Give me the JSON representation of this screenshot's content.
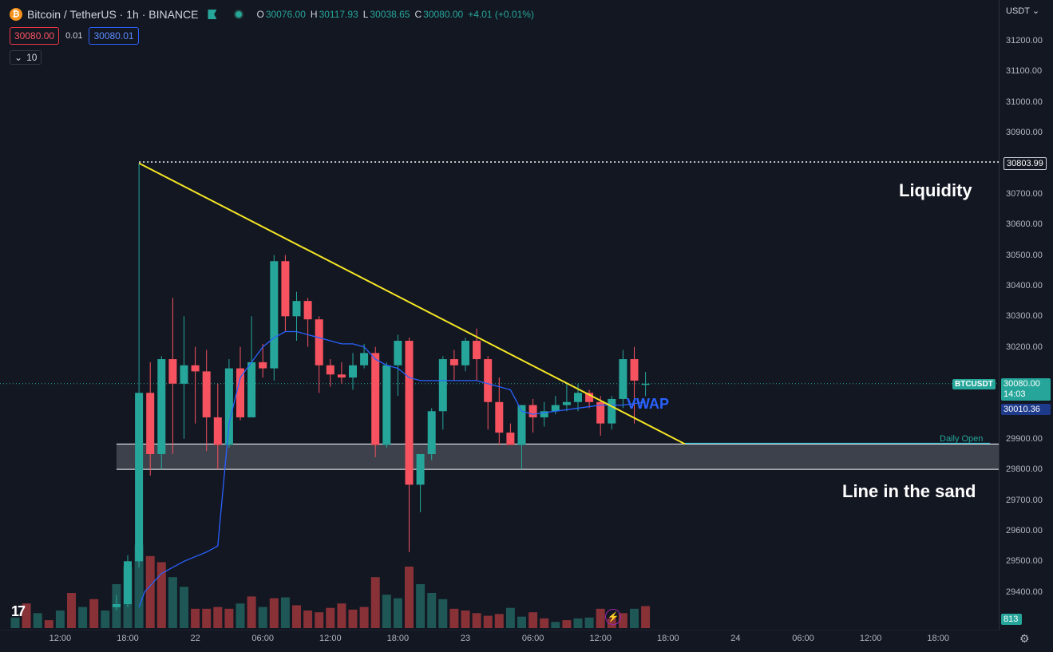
{
  "header": {
    "coin_glyph": "₿",
    "title": "Bitcoin / TetherUS · 1h · BINANCE",
    "ohlc": {
      "o_label": "O",
      "o": "30076.00",
      "h_label": "H",
      "h": "30117.93",
      "l_label": "L",
      "l": "30038.65",
      "c_label": "C",
      "c": "30080.00",
      "change": "+4.01 (+0.01%)"
    },
    "sell_price": "30080.00",
    "spread": "0.01",
    "buy_price": "30080.01",
    "collapse_count": "10",
    "collapse_icon": "chevron-down-icon"
  },
  "axis": {
    "currency": "USDT",
    "y_ticks": [
      "31200.00",
      "31100.00",
      "31000.00",
      "30900.00",
      "30700.00",
      "30600.00",
      "30500.00",
      "30400.00",
      "30300.00",
      "30200.00",
      "29900.00",
      "29800.00",
      "29700.00",
      "29600.00",
      "29500.00",
      "29400.00"
    ],
    "x_ticks": [
      {
        "label": "12:00",
        "t": 4
      },
      {
        "label": "18:00",
        "t": 10
      },
      {
        "label": "22",
        "t": 16
      },
      {
        "label": "06:00",
        "t": 22
      },
      {
        "label": "12:00",
        "t": 28
      },
      {
        "label": "18:00",
        "t": 34
      },
      {
        "label": "23",
        "t": 40
      },
      {
        "label": "06:00",
        "t": 46
      },
      {
        "label": "12:00",
        "t": 52
      },
      {
        "label": "18:00",
        "t": 58
      },
      {
        "label": "24",
        "t": 64
      },
      {
        "label": "06:00",
        "t": 70
      },
      {
        "label": "12:00",
        "t": 76
      },
      {
        "label": "18:00",
        "t": 82
      }
    ]
  },
  "tags": {
    "high": "30803.99",
    "symbol": "BTCUSDT",
    "last_price": "30080.00",
    "countdown": "14:03",
    "vwap_value": "30010.36",
    "volume": "813"
  },
  "annotations": {
    "liquidity": "Liquidity",
    "line_in_sand": "Line in the sand",
    "vwap": "VWAP",
    "daily_open": "Daily Open",
    "logo": "17"
  },
  "colors": {
    "up": "#26a69a",
    "down": "#f7525f",
    "trendline": "#f5e625",
    "vwap": "#2962ff",
    "zone": "#434651",
    "daily_open": "#26c6da"
  },
  "chart_data": {
    "type": "candlestick",
    "interval": "1h",
    "symbol": "BTCUSDT",
    "y_range": [
      29340,
      31280
    ],
    "candles": [
      [
        9,
        29350,
        29390,
        29340,
        29360
      ],
      [
        10,
        29360,
        29520,
        29350,
        29500
      ],
      [
        11,
        29500,
        30800,
        29480,
        30050
      ],
      [
        12,
        30050,
        30150,
        29780,
        29850
      ],
      [
        13,
        29850,
        30170,
        29800,
        30160
      ],
      [
        14,
        30160,
        30360,
        29850,
        30080
      ],
      [
        15,
        30080,
        30300,
        29900,
        30140
      ],
      [
        16,
        30140,
        30200,
        29950,
        30120
      ],
      [
        17,
        30120,
        30190,
        29860,
        29970
      ],
      [
        18,
        29970,
        30080,
        29800,
        29880
      ],
      [
        19,
        29880,
        30160,
        29870,
        30130
      ],
      [
        20,
        30130,
        30200,
        29960,
        29970
      ],
      [
        21,
        29970,
        30300,
        29970,
        30150
      ],
      [
        22,
        30150,
        30210,
        30100,
        30130
      ],
      [
        23,
        30130,
        30500,
        30090,
        30480
      ],
      [
        24,
        30480,
        30500,
        30250,
        30300
      ],
      [
        25,
        30300,
        30380,
        30220,
        30350
      ],
      [
        26,
        30350,
        30360,
        30200,
        30290
      ],
      [
        27,
        30290,
        30300,
        30050,
        30140
      ],
      [
        28,
        30140,
        30160,
        30070,
        30110
      ],
      [
        29,
        30110,
        30150,
        30080,
        30100
      ],
      [
        30,
        30100,
        30180,
        30060,
        30140
      ],
      [
        31,
        30140,
        30210,
        30130,
        30180
      ],
      [
        32,
        30180,
        30200,
        29840,
        29880
      ],
      [
        33,
        29880,
        30150,
        29870,
        30140
      ],
      [
        34,
        30140,
        30240,
        30040,
        30220
      ],
      [
        35,
        30220,
        30230,
        29530,
        29750
      ],
      [
        36,
        29750,
        29850,
        29660,
        29850
      ],
      [
        37,
        29850,
        30000,
        29830,
        29990
      ],
      [
        38,
        29990,
        30170,
        29930,
        30160
      ],
      [
        39,
        30160,
        30190,
        30090,
        30140
      ],
      [
        40,
        30140,
        30230,
        30120,
        30220
      ],
      [
        41,
        30220,
        30260,
        30090,
        30160
      ],
      [
        42,
        30160,
        30170,
        29930,
        30020
      ],
      [
        43,
        30020,
        30100,
        29880,
        29920
      ],
      [
        44,
        29920,
        29950,
        29880,
        29880
      ],
      [
        45,
        29880,
        30010,
        29800,
        30010
      ],
      [
        46,
        30010,
        30030,
        29920,
        29970
      ],
      [
        47,
        29970,
        30020,
        29940,
        29990
      ],
      [
        48,
        29990,
        30040,
        29980,
        30010
      ],
      [
        49,
        30010,
        30080,
        29990,
        30020
      ],
      [
        50,
        30020,
        30080,
        29990,
        30050
      ],
      [
        51,
        30050,
        30060,
        30000,
        30020
      ],
      [
        52,
        30020,
        30040,
        29910,
        29950
      ],
      [
        53,
        29950,
        30040,
        29930,
        30030
      ],
      [
        54,
        30030,
        30190,
        30000,
        30160
      ],
      [
        55,
        30160,
        30200,
        29950,
        30090
      ],
      [
        56,
        30076,
        30118,
        30039,
        30080
      ]
    ],
    "volume": [
      [
        0,
        12,
        "up"
      ],
      [
        1,
        28,
        "down"
      ],
      [
        2,
        17,
        "up"
      ],
      [
        3,
        9,
        "down"
      ],
      [
        4,
        20,
        "up"
      ],
      [
        5,
        40,
        "down"
      ],
      [
        6,
        24,
        "up"
      ],
      [
        7,
        33,
        "down"
      ],
      [
        8,
        20,
        "up"
      ],
      [
        9,
        50,
        "up"
      ],
      [
        10,
        70,
        "up"
      ],
      [
        11,
        95,
        "up"
      ],
      [
        12,
        82,
        "down"
      ],
      [
        13,
        75,
        "down"
      ],
      [
        14,
        58,
        "up"
      ],
      [
        15,
        47,
        "up"
      ],
      [
        16,
        22,
        "down"
      ],
      [
        17,
        22,
        "down"
      ],
      [
        18,
        24,
        "down"
      ],
      [
        19,
        22,
        "down"
      ],
      [
        20,
        28,
        "up"
      ],
      [
        21,
        36,
        "down"
      ],
      [
        22,
        24,
        "up"
      ],
      [
        23,
        34,
        "down"
      ],
      [
        24,
        35,
        "up"
      ],
      [
        25,
        26,
        "down"
      ],
      [
        26,
        20,
        "down"
      ],
      [
        27,
        18,
        "down"
      ],
      [
        28,
        23,
        "down"
      ],
      [
        29,
        28,
        "down"
      ],
      [
        30,
        21,
        "down"
      ],
      [
        31,
        24,
        "down"
      ],
      [
        32,
        58,
        "down"
      ],
      [
        33,
        38,
        "up"
      ],
      [
        34,
        34,
        "up"
      ],
      [
        35,
        70,
        "down"
      ],
      [
        36,
        50,
        "up"
      ],
      [
        37,
        40,
        "up"
      ],
      [
        38,
        33,
        "up"
      ],
      [
        39,
        22,
        "down"
      ],
      [
        40,
        20,
        "down"
      ],
      [
        41,
        17,
        "down"
      ],
      [
        42,
        14,
        "down"
      ],
      [
        43,
        16,
        "down"
      ],
      [
        44,
        23,
        "up"
      ],
      [
        45,
        13,
        "up"
      ],
      [
        46,
        18,
        "down"
      ],
      [
        47,
        11,
        "down"
      ],
      [
        48,
        7,
        "up"
      ],
      [
        49,
        9,
        "down"
      ],
      [
        50,
        11,
        "up"
      ],
      [
        51,
        12,
        "up"
      ],
      [
        52,
        22,
        "down"
      ],
      [
        53,
        11,
        "down"
      ],
      [
        54,
        17,
        "down"
      ],
      [
        55,
        22,
        "up"
      ],
      [
        56,
        25,
        "down"
      ]
    ],
    "vwap": [
      [
        11,
        29350
      ],
      [
        11.5,
        29400
      ],
      [
        12,
        29420
      ],
      [
        13,
        29460
      ],
      [
        14,
        29480
      ],
      [
        15,
        29500
      ],
      [
        17,
        29530
      ],
      [
        18,
        29550
      ],
      [
        19,
        29950
      ],
      [
        20,
        30100
      ],
      [
        21,
        30150
      ],
      [
        22,
        30200
      ],
      [
        23,
        30230
      ],
      [
        24,
        30250
      ],
      [
        25,
        30250
      ],
      [
        26,
        30240
      ],
      [
        27,
        30230
      ],
      [
        28,
        30220
      ],
      [
        29,
        30210
      ],
      [
        30,
        30210
      ],
      [
        31,
        30200
      ],
      [
        32,
        30160
      ],
      [
        33,
        30140
      ],
      [
        34,
        30130
      ],
      [
        35,
        30100
      ],
      [
        36,
        30090
      ],
      [
        37,
        30090
      ],
      [
        38,
        30090
      ],
      [
        40,
        30090
      ],
      [
        41,
        30090
      ],
      [
        42,
        30080
      ],
      [
        43,
        30070
      ],
      [
        44,
        30060
      ],
      [
        45,
        29990
      ],
      [
        46,
        29980
      ],
      [
        48,
        29990
      ],
      [
        50,
        30000
      ],
      [
        52,
        30010
      ],
      [
        54,
        30010
      ],
      [
        56,
        30020
      ]
    ],
    "trendline": [
      [
        11,
        30800
      ],
      [
        59.5,
        29883
      ]
    ],
    "high_line": 30803.99,
    "last_price": 30080.0,
    "daily_open": 29883,
    "zone": [
      29800,
      29883
    ]
  }
}
